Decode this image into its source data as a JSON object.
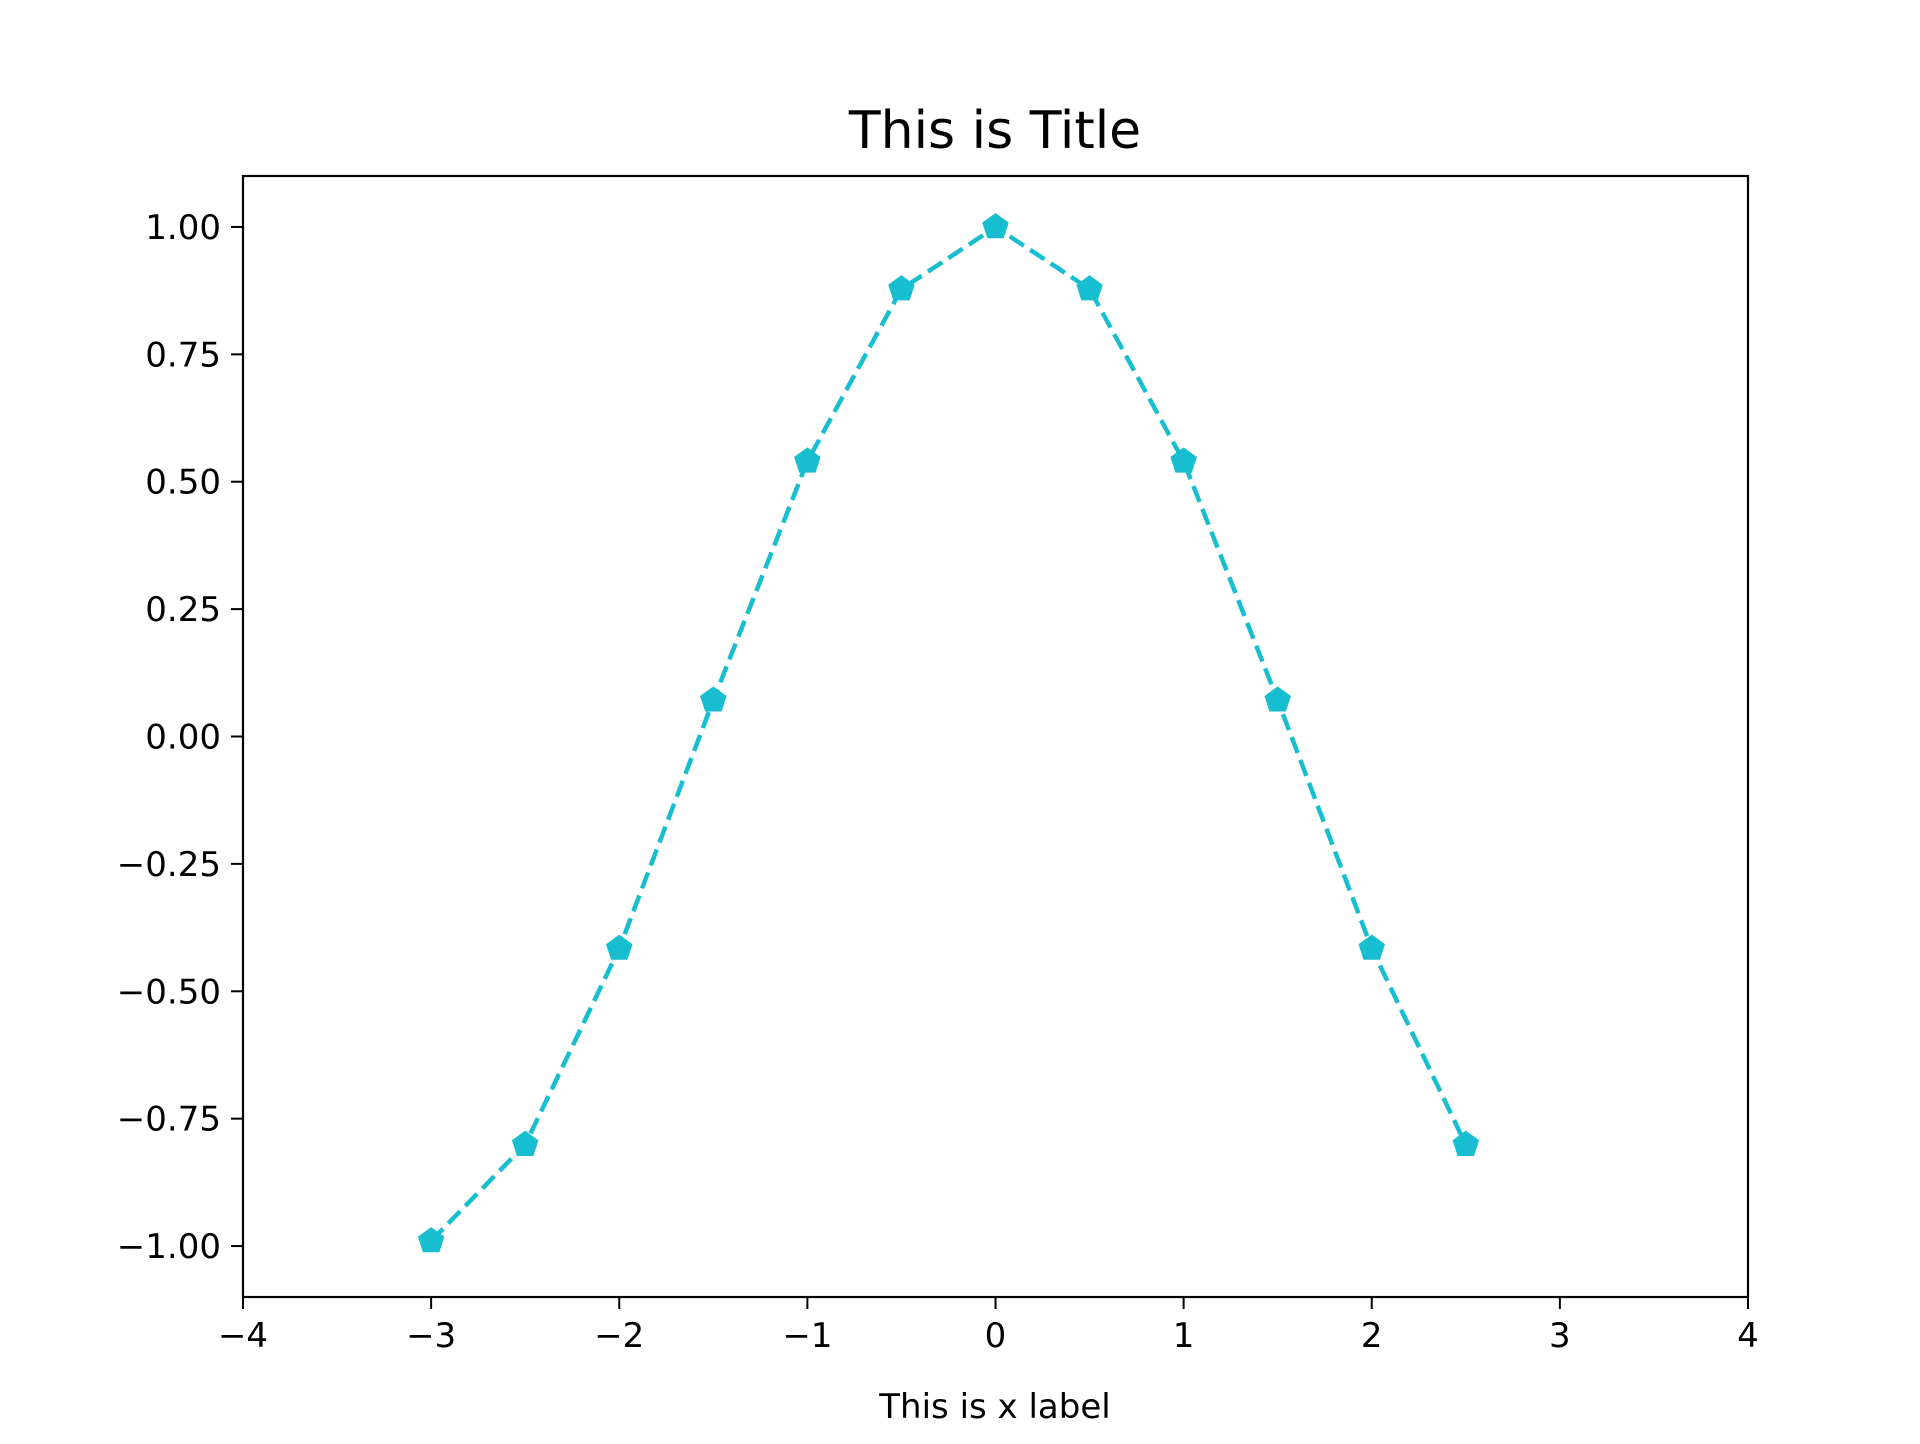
{
  "chart_data": {
    "type": "line",
    "title": "This is Title",
    "xlabel": "This is x label",
    "ylabel": "",
    "xlim": [
      -4,
      4
    ],
    "ylim": [
      -1.1,
      1.1
    ],
    "grid": false,
    "legend": "none",
    "x_ticks": [
      -4,
      -3,
      -2,
      -1,
      0,
      1,
      2,
      3,
      4
    ],
    "x_tick_labels": [
      "−4",
      "−3",
      "−2",
      "−1",
      "0",
      "1",
      "2",
      "3",
      "4"
    ],
    "y_ticks": [
      1.0,
      0.75,
      0.5,
      0.25,
      0.0,
      -0.25,
      -0.5,
      -0.75,
      -1.0
    ],
    "y_tick_labels": [
      "1.00",
      "0.75",
      "0.50",
      "0.25",
      "0.00",
      "−0.25",
      "−0.50",
      "−0.75",
      "−1.00"
    ],
    "series": [
      {
        "color": "#17becf",
        "line_style": "dashed",
        "marker": "pentagon",
        "x": [
          -3.0,
          -2.5,
          -2.0,
          -1.5,
          -1.0,
          -0.5,
          0.0,
          0.5,
          1.0,
          1.5,
          2.0,
          2.5
        ],
        "y": [
          -0.99,
          -0.801,
          -0.416,
          0.071,
          0.54,
          0.878,
          1.0,
          0.878,
          0.54,
          0.071,
          -0.416,
          -0.801
        ]
      }
    ]
  }
}
